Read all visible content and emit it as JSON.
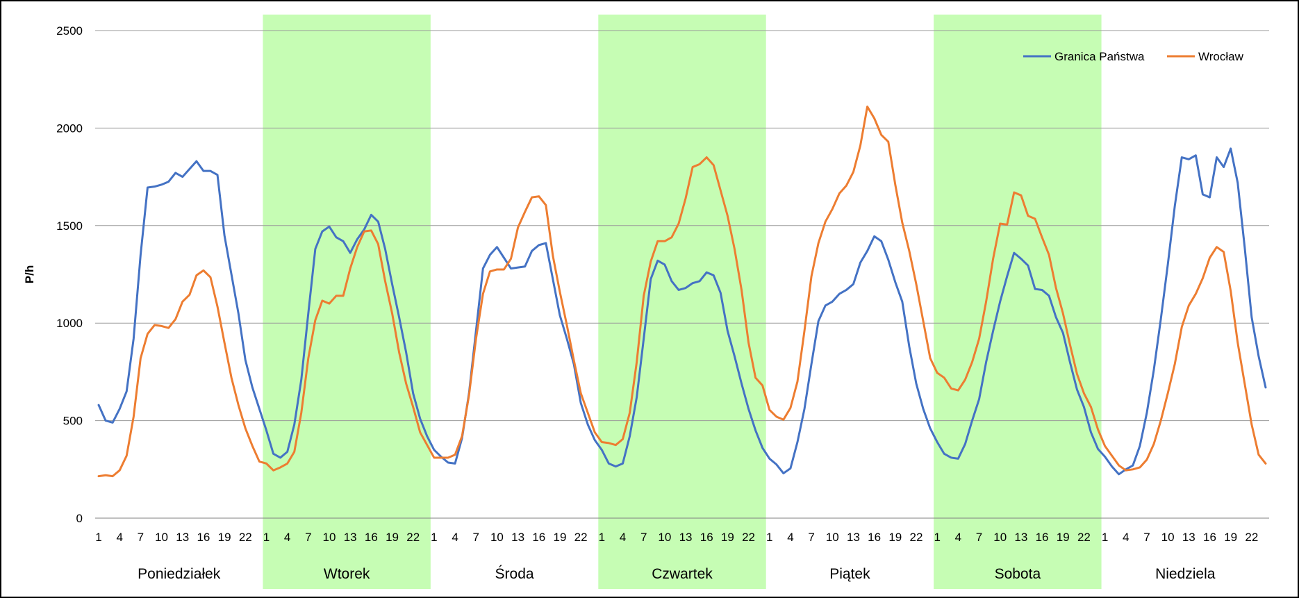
{
  "chart_data": {
    "type": "line",
    "title": "",
    "xlabel": "",
    "ylabel": "P/h",
    "ylim": [
      0,
      2500
    ],
    "yticks": [
      0,
      500,
      1000,
      1500,
      2000,
      2500
    ],
    "grid": true,
    "legend_position": "top-right",
    "days": [
      {
        "label": "Poniedziałek",
        "shaded": false
      },
      {
        "label": "Wtorek",
        "shaded": true
      },
      {
        "label": "Środa",
        "shaded": false
      },
      {
        "label": "Czwartek",
        "shaded": true
      },
      {
        "label": "Piątek",
        "shaded": false
      },
      {
        "label": "Sobota",
        "shaded": true
      },
      {
        "label": "Niedziela",
        "shaded": false
      }
    ],
    "hour_tick_labels": [
      "1",
      "4",
      "7",
      "10",
      "13",
      "16",
      "19",
      "22"
    ],
    "shade_color": "#c6fdb4",
    "series": [
      {
        "name": "Granica Państwa",
        "color": "#4472c4",
        "values": [
          580,
          500,
          490,
          560,
          650,
          920,
          1350,
          1695,
          1700,
          1710,
          1725,
          1770,
          1750,
          1790,
          1830,
          1780,
          1780,
          1760,
          1450,
          1250,
          1050,
          810,
          670,
          560,
          450,
          330,
          310,
          340,
          480,
          710,
          1050,
          1380,
          1470,
          1495,
          1440,
          1420,
          1360,
          1430,
          1480,
          1555,
          1520,
          1380,
          1200,
          1030,
          850,
          640,
          510,
          420,
          350,
          315,
          285,
          280,
          410,
          640,
          960,
          1280,
          1350,
          1390,
          1335,
          1280,
          1285,
          1290,
          1370,
          1400,
          1410,
          1225,
          1040,
          920,
          790,
          590,
          480,
          400,
          350,
          280,
          265,
          280,
          420,
          620,
          920,
          1225,
          1320,
          1300,
          1215,
          1170,
          1180,
          1205,
          1215,
          1260,
          1245,
          1155,
          960,
          830,
          690,
          560,
          450,
          360,
          305,
          275,
          230,
          255,
          390,
          560,
          790,
          1010,
          1090,
          1110,
          1150,
          1170,
          1200,
          1310,
          1370,
          1445,
          1420,
          1325,
          1210,
          1110,
          880,
          690,
          560,
          460,
          390,
          330,
          310,
          305,
          380,
          500,
          610,
          800,
          960,
          1110,
          1240,
          1360,
          1330,
          1295,
          1175,
          1170,
          1140,
          1030,
          950,
          800,
          660,
          570,
          440,
          355,
          315,
          265,
          225,
          250,
          270,
          370,
          540,
          760,
          1020,
          1300,
          1600,
          1850,
          1840,
          1860,
          1660,
          1645,
          1850,
          1800,
          1895,
          1720,
          1390,
          1030,
          830,
          670
        ]
      },
      {
        "name": "Wrocław",
        "color": "#ed7d31",
        "values": [
          215,
          220,
          215,
          245,
          320,
          520,
          820,
          945,
          990,
          985,
          975,
          1020,
          1110,
          1145,
          1245,
          1270,
          1235,
          1085,
          900,
          720,
          580,
          460,
          370,
          290,
          280,
          245,
          260,
          280,
          340,
          540,
          820,
          1015,
          1115,
          1100,
          1140,
          1140,
          1280,
          1390,
          1470,
          1475,
          1405,
          1215,
          1050,
          850,
          690,
          570,
          440,
          375,
          310,
          310,
          310,
          325,
          420,
          630,
          920,
          1150,
          1265,
          1275,
          1275,
          1330,
          1490,
          1570,
          1645,
          1650,
          1605,
          1345,
          1160,
          990,
          810,
          640,
          540,
          440,
          390,
          385,
          375,
          405,
          540,
          800,
          1140,
          1315,
          1420,
          1420,
          1440,
          1510,
          1640,
          1800,
          1815,
          1850,
          1810,
          1680,
          1550,
          1380,
          1170,
          900,
          720,
          680,
          555,
          520,
          505,
          565,
          700,
          960,
          1240,
          1410,
          1520,
          1585,
          1665,
          1705,
          1775,
          1910,
          2110,
          2050,
          1965,
          1930,
          1710,
          1515,
          1370,
          1200,
          1010,
          820,
          745,
          720,
          665,
          655,
          710,
          800,
          920,
          1110,
          1330,
          1510,
          1505,
          1670,
          1655,
          1550,
          1535,
          1440,
          1350,
          1180,
          1050,
          890,
          740,
          640,
          570,
          455,
          370,
          320,
          270,
          245,
          250,
          260,
          300,
          380,
          500,
          640,
          790,
          980,
          1090,
          1150,
          1230,
          1335,
          1390,
          1365,
          1165,
          900,
          690,
          480,
          325,
          280
        ]
      }
    ]
  }
}
